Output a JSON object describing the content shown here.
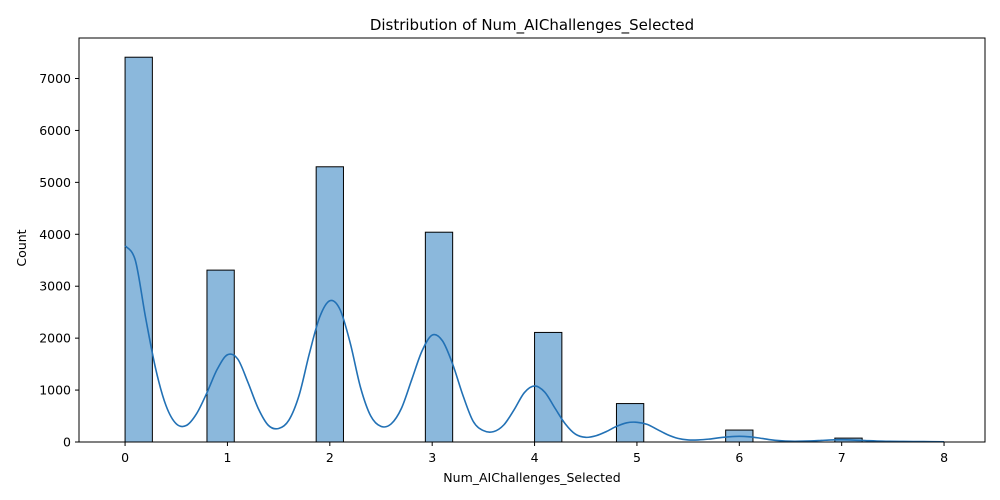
{
  "chart_data": {
    "type": "bar",
    "title": "Distribution of Num_AIChallenges_Selected",
    "xlabel": "Num_AIChallenges_Selected",
    "ylabel": "Count",
    "xlim": [
      -0.45,
      8.4
    ],
    "ylim": [
      0,
      7780
    ],
    "xticks": [
      0,
      1,
      2,
      3,
      4,
      5,
      6,
      7,
      8
    ],
    "yticks": [
      0,
      1000,
      2000,
      3000,
      4000,
      5000,
      6000,
      7000
    ],
    "bar_width": 0.2667,
    "bars": [
      {
        "x0": 0.0,
        "value": 7410
      },
      {
        "x0": 0.8,
        "value": 3310
      },
      {
        "x0": 1.8667,
        "value": 5300
      },
      {
        "x0": 2.9333,
        "value": 4040
      },
      {
        "x0": 4.0,
        "value": 2110
      },
      {
        "x0": 4.8,
        "value": 740
      },
      {
        "x0": 5.8667,
        "value": 230
      },
      {
        "x0": 6.9333,
        "value": 75
      }
    ],
    "kde": {
      "x": [
        0,
        0.1,
        0.2,
        0.3,
        0.4,
        0.5,
        0.6,
        0.7,
        0.8,
        0.9,
        1.0,
        1.1,
        1.2,
        1.3,
        1.4,
        1.5,
        1.6,
        1.7,
        1.8,
        1.9,
        2.0,
        2.1,
        2.2,
        2.3,
        2.4,
        2.5,
        2.6,
        2.7,
        2.8,
        2.9,
        3.0,
        3.1,
        3.2,
        3.3,
        3.4,
        3.5,
        3.6,
        3.7,
        3.8,
        3.9,
        4.0,
        4.1,
        4.2,
        4.3,
        4.4,
        4.5,
        4.6,
        4.7,
        4.8,
        4.9,
        5.0,
        5.1,
        5.2,
        5.3,
        5.4,
        5.5,
        5.6,
        5.7,
        5.8,
        5.9,
        6.0,
        6.1,
        6.2,
        6.3,
        6.4,
        6.5,
        6.6,
        6.7,
        6.8,
        6.9,
        7.0,
        7.2,
        7.4,
        7.6,
        7.8,
        8.0
      ],
      "y": [
        3780,
        3500,
        2400,
        1400,
        700,
        350,
        320,
        550,
        950,
        1400,
        1680,
        1600,
        1150,
        650,
        320,
        260,
        420,
        900,
        1700,
        2400,
        2720,
        2550,
        1900,
        1050,
        500,
        300,
        350,
        650,
        1200,
        1750,
        2060,
        1950,
        1500,
        900,
        400,
        220,
        200,
        330,
        620,
        950,
        1080,
        960,
        650,
        350,
        150,
        90,
        120,
        200,
        300,
        370,
        380,
        340,
        240,
        140,
        70,
        40,
        40,
        55,
        80,
        100,
        110,
        100,
        75,
        45,
        25,
        15,
        15,
        20,
        30,
        40,
        45,
        30,
        15,
        10,
        8,
        5
      ]
    }
  }
}
